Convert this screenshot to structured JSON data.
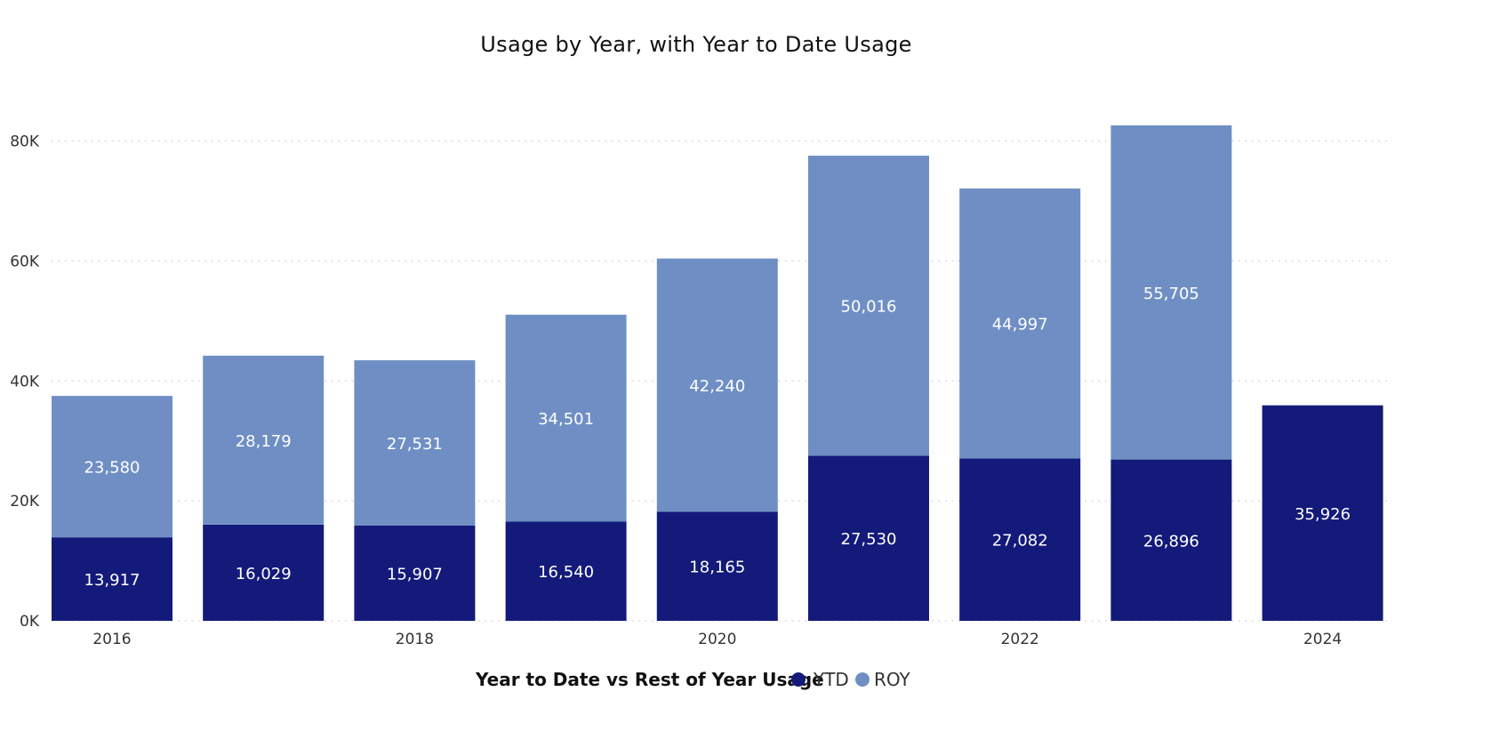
{
  "chart_data": {
    "type": "bar",
    "stacked": true,
    "title": "Usage by Year, with Year to Date Usage",
    "xlabel": "",
    "ylabel": "",
    "categories": [
      "2016",
      "2017",
      "2018",
      "2019",
      "2020",
      "2021",
      "2022",
      "2023",
      "2024"
    ],
    "x_tick_labels": [
      "2016",
      "",
      "2018",
      "",
      "2020",
      "",
      "2022",
      "",
      "2024"
    ],
    "y_ticks": [
      0,
      20000,
      40000,
      60000,
      80000
    ],
    "y_tick_labels": [
      "0K",
      "20K",
      "40K",
      "60K",
      "80K"
    ],
    "ylim": [
      0,
      83000
    ],
    "grid": "horizontal-dotted",
    "legend": {
      "title": "Year to Date vs Rest of Year Usage",
      "placement": "bottom-center"
    },
    "series": [
      {
        "name": "YTD",
        "color": "#131a7a",
        "values": [
          13917,
          16029,
          15907,
          16540,
          18165,
          27530,
          27082,
          26896,
          35926
        ],
        "labels": [
          "13,917",
          "16,029",
          "15,907",
          "16,540",
          "18,165",
          "27,530",
          "27,082",
          "26,896",
          "35,926"
        ]
      },
      {
        "name": "ROY",
        "color": "#6f8fc4",
        "values": [
          23580,
          28179,
          27531,
          34501,
          42240,
          50016,
          44997,
          55705,
          null
        ],
        "labels": [
          "23,580",
          "28,179",
          "27,531",
          "34,501",
          "42,240",
          "50,016",
          "44,997",
          "55,705",
          ""
        ]
      }
    ]
  }
}
